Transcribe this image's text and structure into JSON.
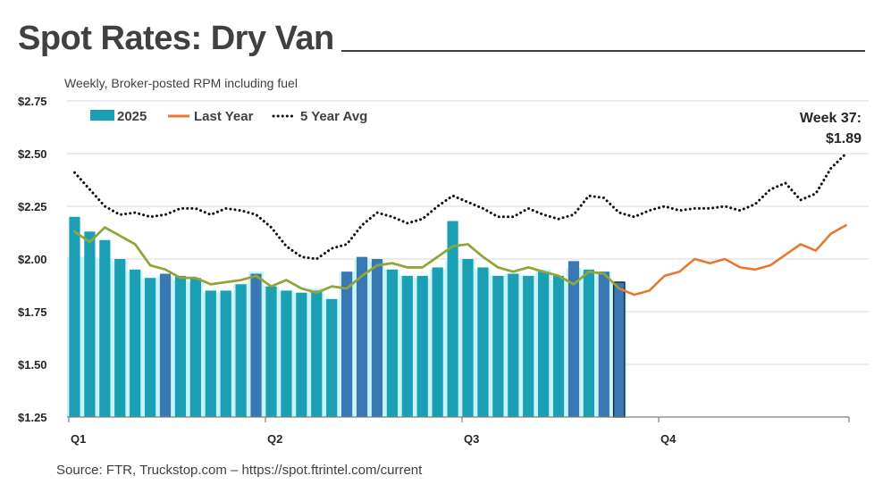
{
  "title": "Spot Rates: Dry Van",
  "subtitle": "Weekly, Broker-posted RPM including fuel",
  "source": "Source: FTR, Truckstop.com – https://spot.ftrintel.com/current",
  "colors": {
    "bars_2025": "#1a9fb5",
    "bars_2025_dark": "#3a78b4",
    "highlight_band": "#c8f4f6",
    "last_year": "#e8782f",
    "five_year_avg": "#111111",
    "overlap_line": "#8ea63a",
    "grid": "#d9d9d9",
    "axis": "#7f7f7f"
  },
  "chart_data": {
    "type": "bar",
    "title": "Spot Rates: Dry Van",
    "subtitle": "Weekly, Broker-posted RPM including fuel",
    "ylim": [
      1.25,
      2.75
    ],
    "yticks": [
      "$2.75",
      "$2.50",
      "$2.25",
      "$2.00",
      "$1.75",
      "$1.50",
      "$1.25"
    ],
    "ytick_values": [
      2.75,
      2.5,
      2.25,
      2.0,
      1.75,
      1.5,
      1.25
    ],
    "xlim": [
      0.5,
      53.5
    ],
    "quarters": [
      {
        "label": "Q1",
        "week": 1
      },
      {
        "label": "Q2",
        "week": 14
      },
      {
        "label": "Q3",
        "week": 27
      },
      {
        "label": "Q4",
        "week": 40
      }
    ],
    "grid": true,
    "legend": {
      "position": "top-left",
      "entries": [
        "2025",
        "Last Year",
        "5 Year Avg"
      ]
    },
    "series": [
      {
        "name": "2025",
        "type": "bar",
        "values": [
          2.2,
          2.13,
          2.09,
          2.0,
          1.95,
          1.91,
          1.93,
          1.92,
          1.91,
          1.85,
          1.85,
          1.88,
          1.93,
          1.87,
          1.85,
          1.84,
          1.85,
          1.81,
          1.94,
          2.01,
          2.0,
          1.95,
          1.92,
          1.92,
          1.96,
          2.18,
          2.0,
          1.96,
          1.92,
          1.93,
          1.92,
          1.94,
          1.92,
          1.99,
          1.95,
          1.94,
          1.89
        ],
        "dark_weeks": [
          7,
          13,
          19,
          20,
          21,
          34,
          36,
          37
        ],
        "faint_values": [
          2.01,
          2.01,
          2.0,
          1.99,
          1.94,
          1.91,
          1.92,
          1.9,
          1.89,
          1.84,
          1.84,
          1.88,
          1.94,
          1.87,
          1.85,
          1.84,
          1.86,
          1.81,
          1.94,
          2.0,
          1.99,
          1.95,
          1.92,
          1.91,
          1.95,
          1.99,
          2.0,
          1.95,
          1.92,
          1.93,
          1.92,
          1.95,
          1.9,
          1.96,
          1.94,
          1.94,
          1.89
        ]
      },
      {
        "name": "Last Year",
        "type": "line",
        "values": [
          2.13,
          2.08,
          2.15,
          2.11,
          2.07,
          1.97,
          1.95,
          1.91,
          1.91,
          1.88,
          1.89,
          1.9,
          1.92,
          1.87,
          1.9,
          1.86,
          1.84,
          1.87,
          1.86,
          1.92,
          1.97,
          1.98,
          1.96,
          1.96,
          2.01,
          2.06,
          2.07,
          2.01,
          1.96,
          1.94,
          1.96,
          1.94,
          1.92,
          1.88,
          1.94,
          1.93,
          1.86,
          1.83,
          1.85,
          1.92,
          1.94,
          2.0,
          1.98,
          2.0,
          1.96,
          1.95,
          1.97,
          2.02,
          2.07,
          2.04,
          2.12,
          2.16
        ]
      },
      {
        "name": "5 Year Avg",
        "type": "line",
        "style": "dotted",
        "values": [
          2.41,
          2.33,
          2.25,
          2.21,
          2.22,
          2.2,
          2.21,
          2.24,
          2.24,
          2.21,
          2.24,
          2.23,
          2.21,
          2.15,
          2.06,
          2.01,
          2.0,
          2.05,
          2.07,
          2.16,
          2.22,
          2.2,
          2.17,
          2.19,
          2.25,
          2.3,
          2.27,
          2.24,
          2.2,
          2.2,
          2.24,
          2.21,
          2.19,
          2.21,
          2.3,
          2.29,
          2.22,
          2.2,
          2.23,
          2.25,
          2.23,
          2.24,
          2.24,
          2.25,
          2.23,
          2.26,
          2.33,
          2.36,
          2.28,
          2.31,
          2.43,
          2.5
        ]
      }
    ],
    "annotation": {
      "line1": "Week 37:",
      "line2": "$1.89"
    }
  }
}
